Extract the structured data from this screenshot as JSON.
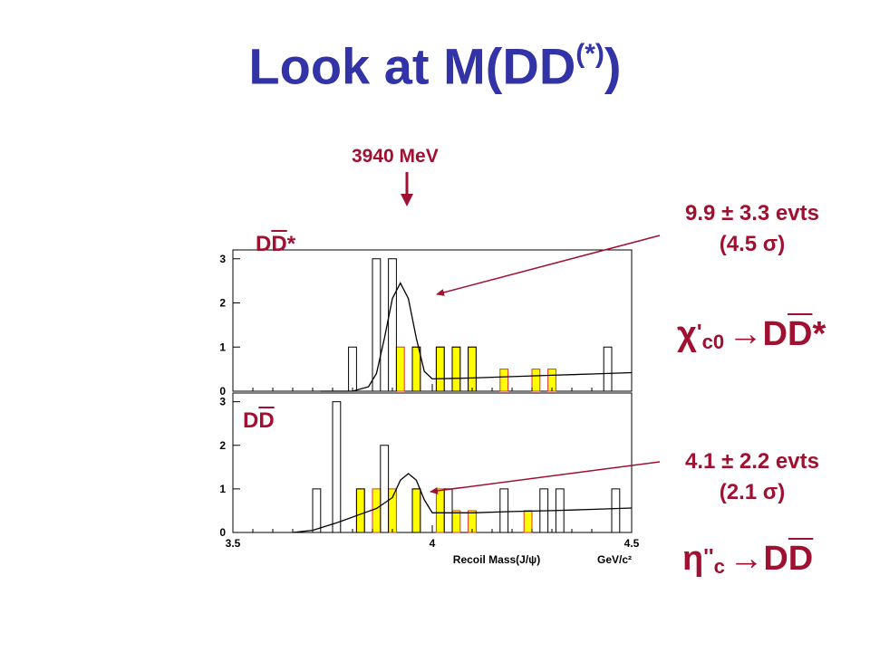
{
  "title": {
    "main": "Look at M(DD",
    "sup": "(*)",
    "close": ")"
  },
  "marker": {
    "label": "3940 MeV",
    "color": "#a01030"
  },
  "annotations": {
    "upper": {
      "line1": "9.9 ± 3.3 evts",
      "line2": "(4.5 σ)"
    },
    "lower": {
      "line1": "4.1 ± 2.2 evts",
      "line2": "(2.1 σ)"
    }
  },
  "labels": {
    "top_panel": {
      "pre": "D",
      "bar": "D",
      "post": "*"
    },
    "bottom_panel": {
      "pre": "D",
      "bar": "D"
    }
  },
  "decays": {
    "upper": {
      "particle": "χ",
      "prime": "'",
      "sub": "c0",
      "arrow": "→",
      "pre": "D",
      "bar": "D",
      "post": "*"
    },
    "lower": {
      "particle": "η",
      "prime": "''",
      "sub": "c",
      "arrow": "→",
      "pre": "D",
      "bar": "D"
    }
  },
  "colors": {
    "title": "#3333a8",
    "accent": "#a01030",
    "fill": "#ffff00",
    "fill_edge": "#e03030"
  },
  "chart_data": [
    {
      "type": "bar",
      "panel": "top",
      "bin_width": 0.02,
      "xlim": [
        3.5,
        4.5
      ],
      "ylim": [
        0,
        3.2
      ],
      "yticks": [
        0,
        1,
        2,
        3
      ],
      "open_bins": [
        [
          3.79,
          1
        ],
        [
          3.85,
          3
        ],
        [
          3.89,
          3
        ],
        [
          3.95,
          1
        ],
        [
          4.01,
          1
        ],
        [
          4.05,
          1
        ],
        [
          4.09,
          1
        ],
        [
          4.43,
          1
        ]
      ],
      "filled_bins": [
        [
          3.91,
          1
        ],
        [
          3.95,
          1
        ],
        [
          4.01,
          1
        ],
        [
          4.05,
          1
        ],
        [
          4.09,
          1
        ],
        [
          4.17,
          0.5
        ],
        [
          4.25,
          0.5
        ],
        [
          4.29,
          0.5
        ]
      ],
      "fit": [
        [
          3.72,
          0
        ],
        [
          3.8,
          0
        ],
        [
          3.84,
          0.1
        ],
        [
          3.86,
          0.4
        ],
        [
          3.88,
          1.2
        ],
        [
          3.9,
          2.1
        ],
        [
          3.92,
          2.45
        ],
        [
          3.94,
          2.1
        ],
        [
          3.96,
          1.2
        ],
        [
          3.98,
          0.45
        ],
        [
          4.0,
          0.28
        ],
        [
          4.1,
          0.3
        ],
        [
          4.2,
          0.33
        ],
        [
          4.3,
          0.36
        ],
        [
          4.4,
          0.39
        ],
        [
          4.5,
          0.42
        ]
      ]
    },
    {
      "type": "bar",
      "panel": "bottom",
      "bin_width": 0.02,
      "xlim": [
        3.5,
        4.5
      ],
      "ylim": [
        0,
        3.2
      ],
      "xticks": [
        3.5,
        4,
        4.5
      ],
      "xtick_labels": [
        "3.5",
        "4",
        "4.5"
      ],
      "yticks": [
        0,
        1,
        2,
        3
      ],
      "xlabel": "Recoil Mass(J/ψ)",
      "xunit": "GeV/c²",
      "open_bins": [
        [
          3.7,
          1
        ],
        [
          3.75,
          3
        ],
        [
          3.81,
          1
        ],
        [
          3.87,
          2
        ],
        [
          3.95,
          1
        ],
        [
          4.03,
          1
        ],
        [
          4.17,
          1
        ],
        [
          4.27,
          1
        ],
        [
          4.31,
          1
        ],
        [
          4.45,
          1
        ]
      ],
      "filled_bins": [
        [
          3.81,
          1
        ],
        [
          3.85,
          1
        ],
        [
          3.89,
          1
        ],
        [
          3.95,
          1
        ],
        [
          4.01,
          1
        ],
        [
          4.05,
          0.5
        ],
        [
          4.09,
          0.5
        ],
        [
          4.23,
          0.5
        ]
      ],
      "fit": [
        [
          3.65,
          0
        ],
        [
          3.7,
          0.05
        ],
        [
          3.76,
          0.22
        ],
        [
          3.82,
          0.42
        ],
        [
          3.86,
          0.55
        ],
        [
          3.9,
          0.8
        ],
        [
          3.92,
          1.2
        ],
        [
          3.94,
          1.35
        ],
        [
          3.96,
          1.2
        ],
        [
          3.98,
          0.75
        ],
        [
          4.0,
          0.45
        ],
        [
          4.1,
          0.45
        ],
        [
          4.2,
          0.48
        ],
        [
          4.3,
          0.5
        ],
        [
          4.4,
          0.53
        ],
        [
          4.5,
          0.56
        ]
      ]
    }
  ]
}
